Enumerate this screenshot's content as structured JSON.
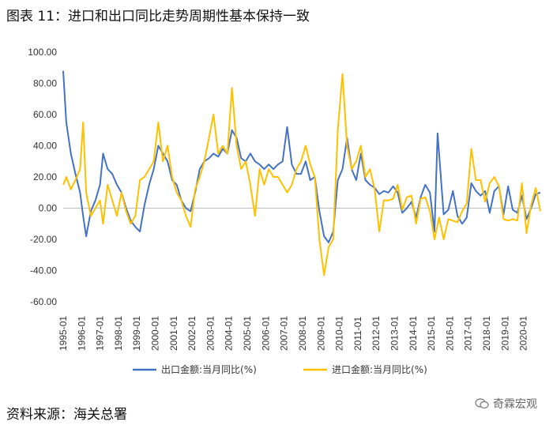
{
  "title": "图表 11：进口和出口同比走势周期性基本保持一致",
  "source": "资料来源：海关总署",
  "watermark": "奇霖宏观",
  "colors": {
    "export": "#4472C4",
    "import": "#FFC000",
    "axis": "#bfbfbf"
  },
  "chart_data": {
    "type": "line",
    "title": "",
    "xlabel": "",
    "ylabel": "",
    "ylim": [
      -60,
      100
    ],
    "yticks": [
      -60,
      -40,
      -20,
      0,
      20,
      40,
      60,
      80,
      100
    ],
    "ytick_labels": [
      "-60.00",
      "-40.00",
      "-20.00",
      "0.00",
      "20.00",
      "40.00",
      "60.00",
      "80.00",
      "100.00"
    ],
    "x_range": [
      "1995-01",
      "2020-12"
    ],
    "xtick_labels": [
      "1995-01",
      "1996-01",
      "1997-01",
      "1998-01",
      "1999-01",
      "2000-01",
      "2001-01",
      "2002-01",
      "2003-01",
      "2004-01",
      "2005-01",
      "2006-01",
      "2007-01",
      "2008-01",
      "2009-01",
      "2010-01",
      "2011-01",
      "2012-01",
      "2013-01",
      "2014-01",
      "2015-01",
      "2016-01",
      "2017-01",
      "2018-01",
      "2019-01",
      "2020-01"
    ],
    "grid": false,
    "legend": "bottom",
    "series": [
      {
        "name": "出口金额:当月同比(%)",
        "points": [
          [
            "1995-01",
            88
          ],
          [
            "1995-03",
            55
          ],
          [
            "1995-06",
            35
          ],
          [
            "1995-09",
            22
          ],
          [
            "1995-12",
            10
          ],
          [
            "1996-02",
            -5
          ],
          [
            "1996-04",
            -18
          ],
          [
            "1996-07",
            -2
          ],
          [
            "1996-10",
            5
          ],
          [
            "1997-01",
            15
          ],
          [
            "1997-03",
            35
          ],
          [
            "1997-06",
            25
          ],
          [
            "1997-09",
            22
          ],
          [
            "1997-12",
            15
          ],
          [
            "1998-03",
            10
          ],
          [
            "1998-06",
            0
          ],
          [
            "1998-09",
            -8
          ],
          [
            "1998-12",
            -12
          ],
          [
            "1999-03",
            -15
          ],
          [
            "1999-06",
            2
          ],
          [
            "1999-09",
            15
          ],
          [
            "1999-12",
            25
          ],
          [
            "2000-03",
            40
          ],
          [
            "2000-06",
            35
          ],
          [
            "2000-09",
            30
          ],
          [
            "2000-12",
            18
          ],
          [
            "2001-03",
            15
          ],
          [
            "2001-06",
            5
          ],
          [
            "2001-09",
            0
          ],
          [
            "2001-12",
            -2
          ],
          [
            "2002-03",
            10
          ],
          [
            "2002-06",
            25
          ],
          [
            "2002-09",
            30
          ],
          [
            "2002-12",
            32
          ],
          [
            "2003-03",
            35
          ],
          [
            "2003-06",
            33
          ],
          [
            "2003-09",
            38
          ],
          [
            "2003-12",
            35
          ],
          [
            "2004-03",
            50
          ],
          [
            "2004-06",
            45
          ],
          [
            "2004-09",
            32
          ],
          [
            "2004-12",
            30
          ],
          [
            "2005-03",
            35
          ],
          [
            "2005-06",
            30
          ],
          [
            "2005-09",
            28
          ],
          [
            "2005-12",
            25
          ],
          [
            "2006-03",
            28
          ],
          [
            "2006-06",
            25
          ],
          [
            "2006-09",
            28
          ],
          [
            "2006-12",
            30
          ],
          [
            "2007-03",
            52
          ],
          [
            "2007-06",
            28
          ],
          [
            "2007-09",
            22
          ],
          [
            "2007-12",
            22
          ],
          [
            "2008-03",
            30
          ],
          [
            "2008-06",
            18
          ],
          [
            "2008-09",
            20
          ],
          [
            "2008-12",
            -2
          ],
          [
            "2009-03",
            -18
          ],
          [
            "2009-06",
            -22
          ],
          [
            "2009-09",
            -15
          ],
          [
            "2009-12",
            18
          ],
          [
            "2010-03",
            25
          ],
          [
            "2010-06",
            45
          ],
          [
            "2010-09",
            25
          ],
          [
            "2010-12",
            18
          ],
          [
            "2011-03",
            35
          ],
          [
            "2011-06",
            18
          ],
          [
            "2011-09",
            15
          ],
          [
            "2011-12",
            13
          ],
          [
            "2012-03",
            9
          ],
          [
            "2012-06",
            11
          ],
          [
            "2012-09",
            10
          ],
          [
            "2012-12",
            14
          ],
          [
            "2013-03",
            10
          ],
          [
            "2013-06",
            -3
          ],
          [
            "2013-09",
            0
          ],
          [
            "2013-12",
            4
          ],
          [
            "2014-03",
            -6
          ],
          [
            "2014-06",
            7
          ],
          [
            "2014-09",
            15
          ],
          [
            "2014-12",
            10
          ],
          [
            "2015-03",
            -15
          ],
          [
            "2015-05",
            48
          ],
          [
            "2015-09",
            -4
          ],
          [
            "2015-12",
            -1
          ],
          [
            "2016-03",
            11
          ],
          [
            "2016-06",
            -5
          ],
          [
            "2016-09",
            -10
          ],
          [
            "2016-12",
            -6
          ],
          [
            "2017-03",
            16
          ],
          [
            "2017-06",
            11
          ],
          [
            "2017-09",
            8
          ],
          [
            "2017-12",
            11
          ],
          [
            "2018-03",
            -3
          ],
          [
            "2018-06",
            11
          ],
          [
            "2018-09",
            14
          ],
          [
            "2018-12",
            -4
          ],
          [
            "2019-03",
            14
          ],
          [
            "2019-06",
            -1
          ],
          [
            "2019-09",
            -3
          ],
          [
            "2019-12",
            8
          ],
          [
            "2020-03",
            -7
          ],
          [
            "2020-06",
            0
          ],
          [
            "2020-09",
            9
          ],
          [
            "2020-12",
            10
          ]
        ]
      },
      {
        "name": "进口金额:当月同比(%)",
        "points": [
          [
            "1995-01",
            15
          ],
          [
            "1995-03",
            20
          ],
          [
            "1995-06",
            12
          ],
          [
            "1995-09",
            18
          ],
          [
            "1995-12",
            25
          ],
          [
            "1996-02",
            55
          ],
          [
            "1996-04",
            10
          ],
          [
            "1996-07",
            -5
          ],
          [
            "1996-10",
            0
          ],
          [
            "1997-01",
            5
          ],
          [
            "1997-03",
            -10
          ],
          [
            "1997-06",
            15
          ],
          [
            "1997-09",
            5
          ],
          [
            "1997-12",
            -5
          ],
          [
            "1998-03",
            10
          ],
          [
            "1998-06",
            -2
          ],
          [
            "1998-09",
            -10
          ],
          [
            "1998-12",
            -5
          ],
          [
            "1999-03",
            18
          ],
          [
            "1999-06",
            20
          ],
          [
            "1999-09",
            25
          ],
          [
            "1999-12",
            30
          ],
          [
            "2000-03",
            55
          ],
          [
            "2000-06",
            30
          ],
          [
            "2000-09",
            40
          ],
          [
            "2000-12",
            20
          ],
          [
            "2001-03",
            10
          ],
          [
            "2001-06",
            5
          ],
          [
            "2001-09",
            -5
          ],
          [
            "2001-12",
            -12
          ],
          [
            "2002-03",
            12
          ],
          [
            "2002-06",
            20
          ],
          [
            "2002-09",
            30
          ],
          [
            "2002-12",
            45
          ],
          [
            "2003-03",
            60
          ],
          [
            "2003-06",
            35
          ],
          [
            "2003-09",
            40
          ],
          [
            "2003-12",
            35
          ],
          [
            "2004-03",
            77
          ],
          [
            "2004-06",
            40
          ],
          [
            "2004-09",
            25
          ],
          [
            "2004-12",
            30
          ],
          [
            "2005-03",
            15
          ],
          [
            "2005-06",
            -5
          ],
          [
            "2005-09",
            25
          ],
          [
            "2005-12",
            15
          ],
          [
            "2006-03",
            25
          ],
          [
            "2006-06",
            20
          ],
          [
            "2006-09",
            20
          ],
          [
            "2006-12",
            15
          ],
          [
            "2007-03",
            10
          ],
          [
            "2007-06",
            15
          ],
          [
            "2007-09",
            25
          ],
          [
            "2007-12",
            30
          ],
          [
            "2008-03",
            40
          ],
          [
            "2008-06",
            28
          ],
          [
            "2008-09",
            20
          ],
          [
            "2008-12",
            -20
          ],
          [
            "2009-03",
            -43
          ],
          [
            "2009-06",
            -25
          ],
          [
            "2009-09",
            -20
          ],
          [
            "2009-12",
            50
          ],
          [
            "2010-03",
            86
          ],
          [
            "2010-06",
            40
          ],
          [
            "2010-09",
            25
          ],
          [
            "2010-12",
            30
          ],
          [
            "2011-03",
            40
          ],
          [
            "2011-06",
            20
          ],
          [
            "2011-09",
            25
          ],
          [
            "2011-12",
            12
          ],
          [
            "2012-03",
            -15
          ],
          [
            "2012-06",
            5
          ],
          [
            "2012-09",
            5
          ],
          [
            "2012-12",
            6
          ],
          [
            "2013-03",
            15
          ],
          [
            "2013-06",
            -1
          ],
          [
            "2013-09",
            7
          ],
          [
            "2013-12",
            8
          ],
          [
            "2014-03",
            -10
          ],
          [
            "2014-06",
            6
          ],
          [
            "2014-09",
            7
          ],
          [
            "2014-12",
            -2
          ],
          [
            "2015-03",
            -20
          ],
          [
            "2015-06",
            -6
          ],
          [
            "2015-09",
            -20
          ],
          [
            "2015-12",
            -7
          ],
          [
            "2016-03",
            -8
          ],
          [
            "2016-06",
            -9
          ],
          [
            "2016-09",
            -2
          ],
          [
            "2016-12",
            3
          ],
          [
            "2017-03",
            38
          ],
          [
            "2017-06",
            18
          ],
          [
            "2017-09",
            18
          ],
          [
            "2017-12",
            4
          ],
          [
            "2018-03",
            16
          ],
          [
            "2018-06",
            20
          ],
          [
            "2018-09",
            14
          ],
          [
            "2018-12",
            -7
          ],
          [
            "2019-03",
            -8
          ],
          [
            "2019-06",
            -7
          ],
          [
            "2019-09",
            -8
          ],
          [
            "2019-12",
            16
          ],
          [
            "2020-03",
            -16
          ],
          [
            "2020-06",
            2
          ],
          [
            "2020-09",
            13
          ],
          [
            "2020-12",
            -2
          ]
        ]
      }
    ]
  }
}
